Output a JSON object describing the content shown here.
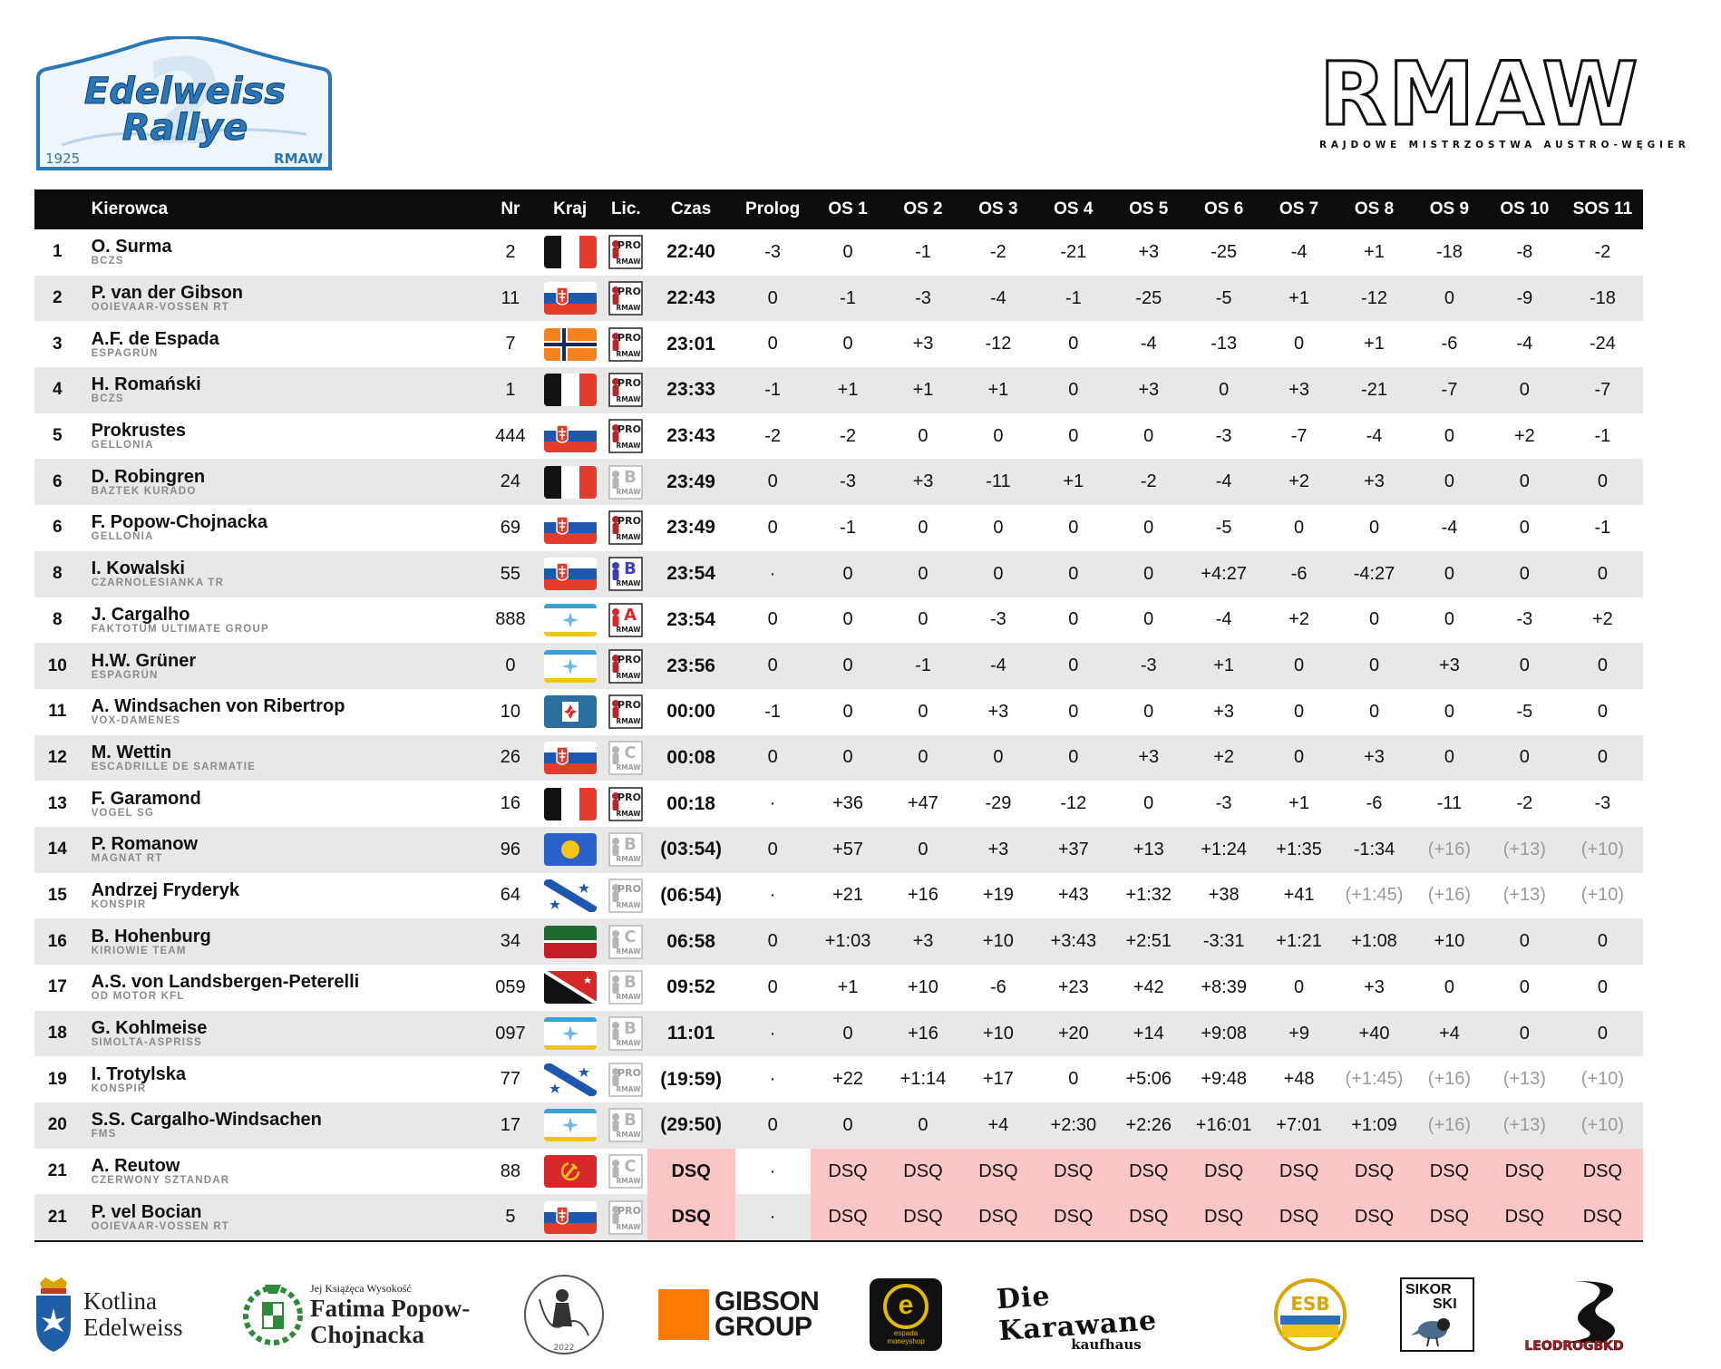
{
  "event_logo": {
    "name_line1": "Edelweiss",
    "name_line2": "Rallye",
    "number": "2",
    "year": "1925",
    "org": "RMAW"
  },
  "brand": {
    "logo": "RMAW",
    "subtitle": "RAJDOWE MISTRZOSTWA AUSTRO-WĘGIER"
  },
  "columns": {
    "driver": "Kierowca",
    "nr": "Nr",
    "country": "Kraj",
    "license": "Lic.",
    "time": "Czas",
    "stages": [
      "Prolog",
      "OS 1",
      "OS 2",
      "OS 3",
      "OS 4",
      "OS 5",
      "OS 6",
      "OS 7",
      "OS 8",
      "OS 9",
      "OS 10",
      "SOS 11"
    ]
  },
  "colors": {
    "header_bg": "#0d0d0d",
    "row_alt": "#e8e8e8",
    "dsq_bg": "#fcc6c6",
    "penalty_text": "#9a9a9a"
  },
  "rows": [
    {
      "pos": "1",
      "name": "O. Surma",
      "team": "BCZS",
      "nr": "2",
      "flag": "bczs",
      "lic": "pro",
      "time": "22:40",
      "stages": [
        "-3",
        "0",
        "-1",
        "-2",
        "-21",
        "+3",
        "-25",
        "-4",
        "+1",
        "-18",
        "-8",
        "-2"
      ]
    },
    {
      "pos": "2",
      "name": "P. van der Gibson",
      "team": "OOIEVAAR-VOSSEN RT",
      "nr": "11",
      "flag": "gellonia",
      "lic": "pro",
      "time": "22:43",
      "stages": [
        "0",
        "-1",
        "-3",
        "-4",
        "-1",
        "-25",
        "-5",
        "+1",
        "-12",
        "0",
        "-9",
        "-18"
      ]
    },
    {
      "pos": "3",
      "name": "A.F. de Espada",
      "team": "ESPAGRÜN",
      "nr": "7",
      "flag": "cross",
      "lic": "pro",
      "time": "23:01",
      "stages": [
        "0",
        "0",
        "+3",
        "-12",
        "0",
        "-4",
        "-13",
        "0",
        "+1",
        "-6",
        "-4",
        "-24"
      ]
    },
    {
      "pos": "4",
      "name": "H. Romański",
      "team": "BCZS",
      "nr": "1",
      "flag": "bczs",
      "lic": "pro",
      "time": "23:33",
      "stages": [
        "-1",
        "+1",
        "+1",
        "+1",
        "0",
        "+3",
        "0",
        "+3",
        "-21",
        "-7",
        "0",
        "-7"
      ]
    },
    {
      "pos": "5",
      "name": "Prokrustes",
      "team": "GELLONIA",
      "nr": "444",
      "flag": "gellonia",
      "lic": "pro",
      "time": "23:43",
      "stages": [
        "-2",
        "-2",
        "0",
        "0",
        "0",
        "0",
        "-3",
        "-7",
        "-4",
        "0",
        "+2",
        "-1"
      ]
    },
    {
      "pos": "6",
      "name": "D. Robingren",
      "team": "BAZTEK KURADO",
      "nr": "24",
      "flag": "bczs",
      "lic": "b-grey",
      "time": "23:49",
      "stages": [
        "0",
        "-3",
        "+3",
        "-11",
        "+1",
        "-2",
        "-4",
        "+2",
        "+3",
        "0",
        "0",
        "0"
      ]
    },
    {
      "pos": "6",
      "name": "F. Popow-Chojnacka",
      "team": "GELLONIA",
      "nr": "69",
      "flag": "gellonia",
      "lic": "pro",
      "time": "23:49",
      "stages": [
        "0",
        "-1",
        "0",
        "0",
        "0",
        "0",
        "-5",
        "0",
        "0",
        "-4",
        "0",
        "-1"
      ]
    },
    {
      "pos": "8",
      "name": "I. Kowalski",
      "team": "CZARNOLESIANKA TR",
      "nr": "55",
      "flag": "gellonia",
      "lic": "b-blue",
      "time": "23:54",
      "stages": [
        "·",
        "0",
        "0",
        "0",
        "0",
        "0",
        "+4:27",
        "-6",
        "-4:27",
        "0",
        "0",
        "0"
      ]
    },
    {
      "pos": "8",
      "name": "J. Cargalho",
      "team": "FAKTOTUM ULTIMATE GROUP",
      "nr": "888",
      "flag": "star",
      "lic": "a-red",
      "time": "23:54",
      "stages": [
        "0",
        "0",
        "0",
        "-3",
        "0",
        "0",
        "-4",
        "+2",
        "0",
        "0",
        "-3",
        "+2"
      ]
    },
    {
      "pos": "10",
      "name": "H.W. Grüner",
      "team": "ESPAGRÜN",
      "nr": "0",
      "flag": "star",
      "lic": "pro",
      "time": "23:56",
      "stages": [
        "0",
        "0",
        "-1",
        "-4",
        "0",
        "-3",
        "+1",
        "0",
        "0",
        "+3",
        "0",
        "0"
      ]
    },
    {
      "pos": "11",
      "name": "A. Windsachen von Ribertrop",
      "team": "VOX-DAMENES",
      "nr": "10",
      "flag": "maltese",
      "lic": "pro",
      "time": "00:00",
      "stages": [
        "-1",
        "0",
        "0",
        "+3",
        "0",
        "0",
        "+3",
        "0",
        "0",
        "0",
        "-5",
        "0"
      ]
    },
    {
      "pos": "12",
      "name": "M. Wettin",
      "team": "ESCADRILLE DE SARMATIE",
      "nr": "26",
      "flag": "gellonia",
      "lic": "c-grey",
      "time": "00:08",
      "stages": [
        "0",
        "0",
        "0",
        "0",
        "0",
        "+3",
        "+2",
        "0",
        "+3",
        "0",
        "0",
        "0"
      ]
    },
    {
      "pos": "13",
      "name": "F. Garamond",
      "team": "VOGEL SG",
      "nr": "16",
      "flag": "bczs",
      "lic": "pro",
      "time": "00:18",
      "stages": [
        "·",
        "+36",
        "+47",
        "-29",
        "-12",
        "0",
        "-3",
        "+1",
        "-6",
        "-11",
        "-2",
        "-3"
      ]
    },
    {
      "pos": "14",
      "name": "P. Romanow",
      "team": "MAGNAT RT",
      "nr": "96",
      "flag": "blue-disc",
      "lic": "b-grey",
      "time": "(03:54)",
      "stages": [
        "0",
        "+57",
        "0",
        "+3",
        "+37",
        "+13",
        "+1:24",
        "+1:35",
        "-1:34",
        "(+16)",
        "(+13)",
        "(+10)"
      ],
      "pen": [
        9,
        10,
        11
      ]
    },
    {
      "pos": "15",
      "name": "Andrzej Fryderyk",
      "team": "KONSPIR",
      "nr": "64",
      "flag": "diag",
      "lic": "pro-grey",
      "time": "(06:54)",
      "stages": [
        "·",
        "+21",
        "+16",
        "+19",
        "+43",
        "+1:32",
        "+38",
        "+41",
        "(+1:45)",
        "(+16)",
        "(+13)",
        "(+10)"
      ],
      "pen": [
        8,
        9,
        10,
        11
      ]
    },
    {
      "pos": "16",
      "name": "B. Hohenburg",
      "team": "KIRIOWIE TEAM",
      "nr": "34",
      "flag": "green-red",
      "lic": "c-grey",
      "time": "06:58",
      "stages": [
        "0",
        "+1:03",
        "+3",
        "+10",
        "+3:43",
        "+2:51",
        "-3:31",
        "+1:21",
        "+1:08",
        "+10",
        "0",
        "0"
      ]
    },
    {
      "pos": "17",
      "name": "A.S. von Landsbergen-Peterelli",
      "team": "OD MOTOR KFL",
      "nr": "059",
      "flag": "tri",
      "lic": "b-grey",
      "time": "09:52",
      "stages": [
        "0",
        "+1",
        "+10",
        "-6",
        "+23",
        "+42",
        "+8:39",
        "0",
        "+3",
        "0",
        "0",
        "0"
      ]
    },
    {
      "pos": "18",
      "name": "G. Kohlmeise",
      "team": "SIMOLTA-ASPRISS",
      "nr": "097",
      "flag": "star",
      "lic": "b-grey",
      "time": "11:01",
      "stages": [
        "·",
        "0",
        "+16",
        "+10",
        "+20",
        "+14",
        "+9:08",
        "+9",
        "+40",
        "+4",
        "0",
        "0"
      ]
    },
    {
      "pos": "19",
      "name": "I. Trotylska",
      "team": "KONSPIR",
      "nr": "77",
      "flag": "diag",
      "lic": "pro-grey",
      "time": "(19:59)",
      "stages": [
        "·",
        "+22",
        "+1:14",
        "+17",
        "0",
        "+5:06",
        "+9:48",
        "+48",
        "(+1:45)",
        "(+16)",
        "(+13)",
        "(+10)"
      ],
      "pen": [
        8,
        9,
        10,
        11
      ]
    },
    {
      "pos": "20",
      "name": "S.S. Cargalho-Windsachen",
      "team": "FMS",
      "nr": "17",
      "flag": "star",
      "lic": "b-grey",
      "time": "(29:50)",
      "stages": [
        "0",
        "0",
        "0",
        "+4",
        "+2:30",
        "+2:26",
        "+16:01",
        "+7:01",
        "+1:09",
        "(+16)",
        "(+13)",
        "(+10)"
      ],
      "pen": [
        9,
        10,
        11
      ]
    },
    {
      "pos": "21",
      "name": "A. Reutow",
      "team": "CZERWONY SZTANDAR",
      "nr": "88",
      "flag": "hammer",
      "lic": "c-grey",
      "time": "DSQ",
      "stages": [
        "·",
        "DSQ",
        "DSQ",
        "DSQ",
        "DSQ",
        "DSQ",
        "DSQ",
        "DSQ",
        "DSQ",
        "DSQ",
        "DSQ",
        "DSQ"
      ],
      "dsq": true
    },
    {
      "pos": "21",
      "name": "P. vel Bocian",
      "team": "OOIEVAAR-VOSSEN RT",
      "nr": "5",
      "flag": "gellonia",
      "lic": "pro-grey",
      "time": "DSQ",
      "stages": [
        "·",
        "DSQ",
        "DSQ",
        "DSQ",
        "DSQ",
        "DSQ",
        "DSQ",
        "DSQ",
        "DSQ",
        "DSQ",
        "DSQ",
        "DSQ"
      ],
      "dsq": true
    }
  ],
  "license_text": {
    "pro": "PRO",
    "rmaw": "RMAW"
  },
  "sponsors": {
    "kotlina": {
      "line1": "Kotlina",
      "line2": "Edelweiss"
    },
    "fatima": {
      "small": "Jej Książęca Wysokość",
      "line1": "Fatima Popow-",
      "line2": "Chojnacka"
    },
    "ksaw": {
      "text": "2022"
    },
    "gibson": {
      "line1": "GIBSON",
      "line2": "GROUP"
    },
    "espada": {
      "letter": "e",
      "line1": "espada",
      "line2": "moneyshop"
    },
    "karawane": {
      "line1": "Die Karawane",
      "line2": "kaufhaus"
    },
    "esb": {
      "text": "ESB"
    },
    "sikorski": {
      "line1": "SIKOR",
      "line2": "SKI"
    },
    "leodrog": {
      "text": "LEODROGBKD"
    }
  }
}
